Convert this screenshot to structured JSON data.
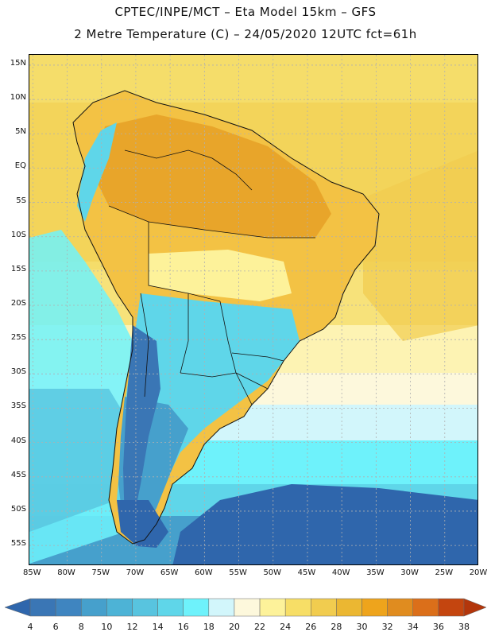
{
  "header": {
    "line1": "CPTEC/INPE/MCT –  Eta Model 15km – GFS",
    "line2": "2 Metre Temperature (C) – 24/05/2020 12UTC fct=61h"
  },
  "map": {
    "lat_ticks": [
      "15N",
      "10N",
      "5N",
      "EQ",
      "5S",
      "10S",
      "15S",
      "20S",
      "25S",
      "30S",
      "35S",
      "40S",
      "45S",
      "50S",
      "55S"
    ],
    "lon_ticks": [
      "85W",
      "80W",
      "75W",
      "70W",
      "65W",
      "60W",
      "55W",
      "50W",
      "45W",
      "40W",
      "35W",
      "30W",
      "25W",
      "20W"
    ],
    "lat_values": [
      15,
      10,
      5,
      0,
      -5,
      -10,
      -15,
      -20,
      -25,
      -30,
      -35,
      -40,
      -45,
      -50,
      -55
    ],
    "lon_values": [
      -85,
      -80,
      -75,
      -70,
      -65,
      -60,
      -55,
      -50,
      -45,
      -40,
      -35,
      -30,
      -25,
      -20
    ],
    "extent": {
      "lon_min": -85.5,
      "lon_max": -20,
      "lat_min": -58,
      "lat_max": 16.5
    }
  },
  "colorbar": {
    "labels": [
      "4",
      "6",
      "8",
      "10",
      "12",
      "14",
      "16",
      "18",
      "20",
      "22",
      "24",
      "26",
      "28",
      "30",
      "32",
      "34",
      "36",
      "38"
    ],
    "colors": [
      "#3a76b5",
      "#3f85c0",
      "#46a0cc",
      "#4db3d6",
      "#58c4df",
      "#5fd6e9",
      "#6ef2fb",
      "#d2f6fb",
      "#fdf8dc",
      "#fdf29a",
      "#f7de66",
      "#f1cc4f",
      "#ebb732",
      "#eea41c",
      "#e08c1f",
      "#db6f1a",
      "#c4450f"
    ],
    "low_color": "#2f66ac",
    "high_color": "#b3360b"
  }
}
